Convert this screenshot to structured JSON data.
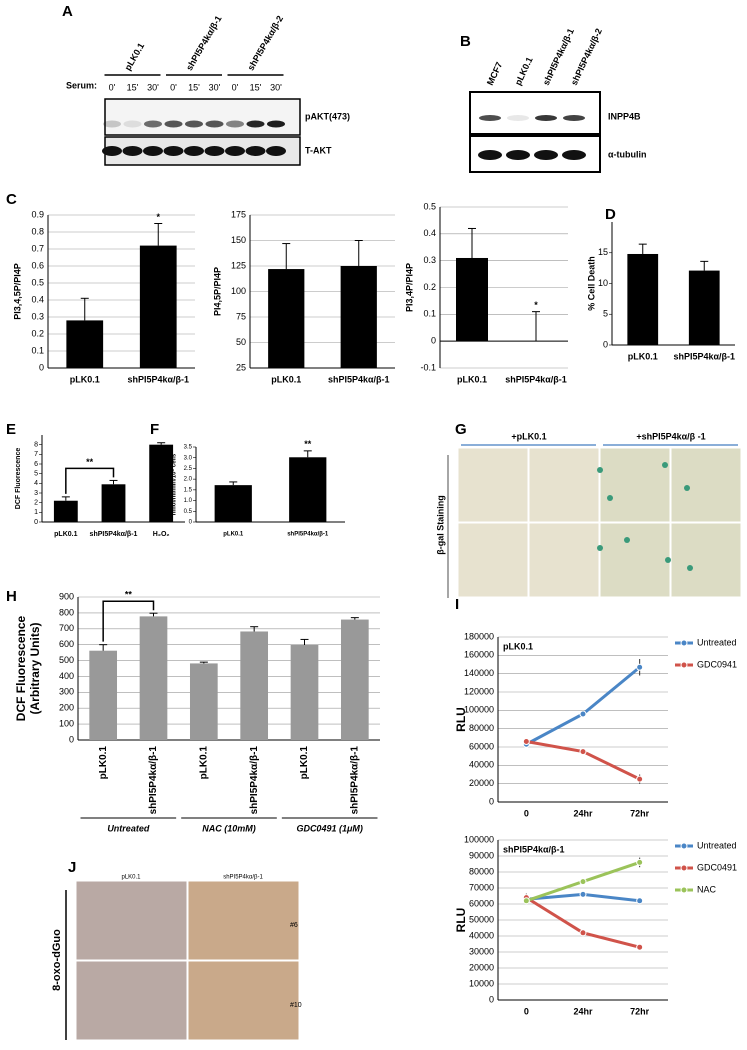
{
  "panel_labels": [
    "A",
    "B",
    "C",
    "D",
    "E",
    "F",
    "G",
    "H",
    "I",
    "J"
  ],
  "blot_a": {
    "lane_groups": [
      "pLK0.1",
      "shPI5P4kα/β-1",
      "shPI5P4kα/β-2"
    ],
    "serum_label": "Serum:",
    "times": [
      "0'",
      "15'",
      "30'",
      "0'",
      "15'",
      "30'",
      "0'",
      "15'",
      "30'"
    ],
    "rows": [
      "pAKT(473)",
      "T-AKT"
    ]
  },
  "blot_b": {
    "lanes": [
      "MCF7",
      "pLK0.1",
      "shPI5P4kα/β-1",
      "shPI5P4kα/β-2"
    ],
    "rows": [
      "INPP4B",
      "α-tubulin"
    ]
  },
  "images_g": {
    "columns": [
      "+pLK0.1",
      "+shPI5P4kα/β -1"
    ],
    "row_label": "β-gal Staining"
  },
  "images_j": {
    "columns": [
      "pLK0.1",
      "shPI5P4kα/β-1"
    ],
    "row_label": "8-oxo-dGuo",
    "samples": [
      "#6",
      "#10"
    ]
  },
  "chart_data": [
    {
      "type": "bar",
      "y_label": "PI3,4,5P/PI4P",
      "categories": [
        "pLK0.1",
        "shPI5P4kα/β-1"
      ],
      "values": [
        0.28,
        0.72
      ],
      "errors": [
        0.13,
        0.13
      ],
      "color": "#000000",
      "ylim": [
        0,
        0.9
      ],
      "yticks": [
        0,
        0.1,
        0.2,
        0.3,
        0.4,
        0.5,
        0.6,
        0.7,
        0.8,
        0.9
      ],
      "grid": true,
      "annotations": [
        "*"
      ]
    },
    {
      "type": "bar",
      "y_label": "PI4,5P/PI4P",
      "categories": [
        "pLK0.1",
        "shPI5P4kα/β-1"
      ],
      "values": [
        122,
        125
      ],
      "errors": [
        25,
        25
      ],
      "color": "#000000",
      "ylim": [
        25,
        175
      ],
      "yticks": [
        25,
        50,
        75,
        100,
        125,
        150,
        175
      ],
      "grid": true
    },
    {
      "type": "bar",
      "y_label": "PI3,4P/PI4P",
      "categories": [
        "pLK0.1",
        "shPI5P4kα/β-1"
      ],
      "values": [
        0.31,
        0
      ],
      "errors": [
        0.11,
        0.11
      ],
      "color": "#000000",
      "ylim": [
        -0.1,
        0.5
      ],
      "yticks": [
        -0.1,
        0,
        0.1,
        0.2,
        0.3,
        0.4,
        0.5
      ],
      "grid": true,
      "annotations": [
        "*"
      ]
    },
    {
      "type": "bar",
      "y_label": "% Cell Death",
      "categories": [
        "pLK0.1",
        "shPI5P4kα/β-1"
      ],
      "values": [
        14.8,
        12.1
      ],
      "errors": [
        1.6,
        1.5
      ],
      "color": "#000000",
      "ylim": [
        0,
        20
      ],
      "yticks": [
        0,
        5,
        10,
        15
      ],
      "grid": false
    },
    {
      "type": "bar",
      "y_label": "DCF Fluorescence",
      "categories": [
        "pLK0.1",
        "shPI5P4kα/β-1",
        "H₂O₂"
      ],
      "values": [
        2.2,
        3.9,
        8.0
      ],
      "errors": [
        0.4,
        0.4,
        0.2
      ],
      "color": "#000000",
      "ylim": [
        0,
        9
      ],
      "yticks": [
        0,
        1,
        2,
        3,
        4,
        5,
        6,
        7,
        8
      ],
      "grid": false,
      "annotations": [
        "**"
      ]
    },
    {
      "type": "bar",
      "y_label": "nmol/ml/min/10⁶ cells",
      "categories": [
        "pLK0.1",
        "shPI5P4kα/β-1"
      ],
      "values": [
        1.72,
        3.02
      ],
      "errors": [
        0.15,
        0.3
      ],
      "color": "#000000",
      "ylim": [
        0,
        3.5
      ],
      "yticks": [
        0,
        0.5,
        {
          "value": 1,
          "label": "1.0"
        },
        1.5,
        {
          "value": 2,
          "label": "2.0"
        },
        2.5,
        {
          "value": 3,
          "label": "3.0"
        },
        3.5
      ],
      "grid": false,
      "annotations": [
        "**"
      ]
    },
    {
      "type": "bar",
      "y_label": [
        "DCF Fluorescence",
        "(Arbitrary Units)"
      ],
      "categories": [
        "pLK0.1",
        "shPI5P4kα/β-1",
        "pLK0.1",
        "shPI5P4kα/β-1",
        "pLK0.1",
        "shPI5P4kα/β-1"
      ],
      "values": [
        562,
        778,
        482,
        683,
        598,
        758
      ],
      "errors": [
        38,
        20,
        8,
        30,
        35,
        12
      ],
      "color": "#999999",
      "ylim": [
        0,
        900
      ],
      "yticks": [
        0,
        100,
        200,
        300,
        400,
        500,
        600,
        700,
        800,
        900
      ],
      "grid": true,
      "groups": [
        "Untreated",
        "NAC (10mM)",
        "GDC0491 (1μM)"
      ],
      "annotations": [
        "**"
      ]
    },
    {
      "type": "line",
      "title": "pLK0.1",
      "y_label": "RLU",
      "categories": [
        "0",
        "24hr",
        "72hr"
      ],
      "ylim": [
        0,
        180000
      ],
      "yticks": [
        0,
        20000,
        40000,
        60000,
        80000,
        100000,
        120000,
        140000,
        160000,
        180000
      ],
      "grid": true,
      "series": [
        {
          "name": "Untreated",
          "color": "#4a86c6",
          "values": [
            63000,
            96000,
            147000
          ],
          "errors": [
            2000,
            3000,
            9000
          ]
        },
        {
          "name": "GDC0941",
          "color": "#d0534a",
          "values": [
            66000,
            55000,
            25000
          ],
          "errors": [
            3000,
            2000,
            5000
          ]
        }
      ]
    },
    {
      "type": "line",
      "title": "shPI5P4kα/β-1",
      "y_label": "RLU",
      "categories": [
        "0",
        "24hr",
        "72hr"
      ],
      "ylim": [
        0,
        100000
      ],
      "yticks": [
        0,
        10000,
        20000,
        30000,
        40000,
        50000,
        60000,
        70000,
        80000,
        90000,
        100000
      ],
      "grid": true,
      "series": [
        {
          "name": "Untreated",
          "color": "#4a86c6",
          "values": [
            63000,
            66000,
            62000
          ],
          "errors": [
            1500,
            1000,
            1000
          ]
        },
        {
          "name": "GDC0491",
          "color": "#d0534a",
          "values": [
            64000,
            42000,
            33000
          ],
          "errors": [
            2500,
            1000,
            1000
          ]
        },
        {
          "name": "NAC",
          "color": "#9bc35a",
          "values": [
            62000,
            74000,
            86000
          ],
          "errors": [
            1500,
            1500,
            3000
          ]
        }
      ]
    }
  ]
}
